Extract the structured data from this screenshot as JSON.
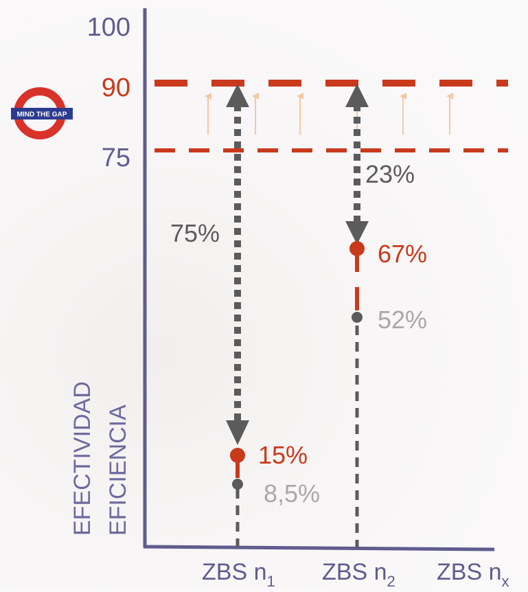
{
  "colors": {
    "axis": "#5f5c8e",
    "red": "#c9391c",
    "dark": "#5b5b5b",
    "gray": "#a8a8a8",
    "light_arrow": "#f3c8a2",
    "logo_ring": "#d8322a",
    "logo_bar": "#2b3c8f"
  },
  "logo": {
    "text": "MIND THE GAP",
    "icon": "roundel-icon"
  },
  "y_axis": {
    "ticks": [
      {
        "value": 100,
        "label": "100",
        "color": "axis"
      },
      {
        "value": 90,
        "label": "90",
        "color": "red"
      },
      {
        "value": 75,
        "label": "75",
        "color": "axis"
      }
    ],
    "label_lines": [
      "EFECTIVIDAD",
      "EFICIENCIA"
    ]
  },
  "x_axis": {
    "categories": [
      {
        "base": "ZBS n",
        "sub": "1"
      },
      {
        "base": "ZBS n",
        "sub": "2"
      },
      {
        "base": "ZBS n",
        "sub": "x"
      }
    ]
  },
  "columns": [
    {
      "category": "ZBS n1",
      "gap_label": "75%",
      "effectiveness": {
        "label": "15%"
      },
      "efficiency": {
        "label": "8,5%"
      }
    },
    {
      "category": "ZBS n2",
      "gap_label": "23%",
      "effectiveness": {
        "label": "67%"
      },
      "efficiency": {
        "label": "52%"
      }
    }
  ]
}
